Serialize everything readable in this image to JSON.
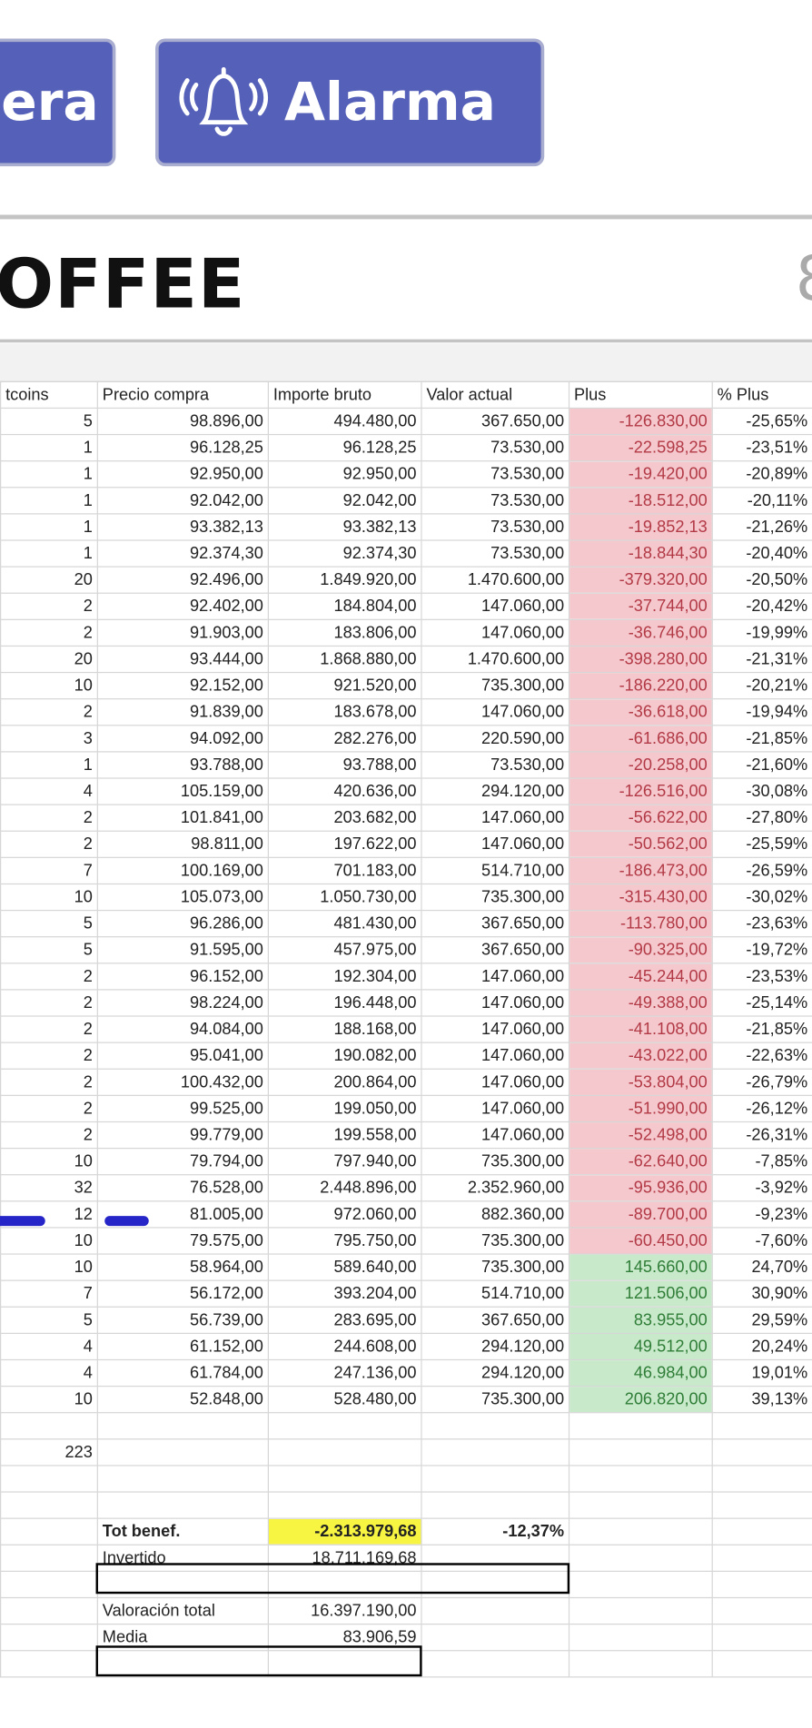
{
  "header": {
    "left_button": "era",
    "right_button": "Alarma",
    "title": "OFFEE",
    "title_right": "8"
  },
  "table": {
    "columns": [
      "tcoins",
      "Precio compra",
      "Importe bruto",
      "Valor actual",
      "Plus",
      "% Plus"
    ],
    "rows": [
      [
        "5",
        "98.896,00",
        "494.480,00",
        "367.650,00",
        "-126.830,00",
        "-25,65%"
      ],
      [
        "1",
        "96.128,25",
        "96.128,25",
        "73.530,00",
        "-22.598,25",
        "-23,51%"
      ],
      [
        "1",
        "92.950,00",
        "92.950,00",
        "73.530,00",
        "-19.420,00",
        "-20,89%"
      ],
      [
        "1",
        "92.042,00",
        "92.042,00",
        "73.530,00",
        "-18.512,00",
        "-20,11%"
      ],
      [
        "1",
        "93.382,13",
        "93.382,13",
        "73.530,00",
        "-19.852,13",
        "-21,26%"
      ],
      [
        "1",
        "92.374,30",
        "92.374,30",
        "73.530,00",
        "-18.844,30",
        "-20,40%"
      ],
      [
        "20",
        "92.496,00",
        "1.849.920,00",
        "1.470.600,00",
        "-379.320,00",
        "-20,50%"
      ],
      [
        "2",
        "92.402,00",
        "184.804,00",
        "147.060,00",
        "-37.744,00",
        "-20,42%"
      ],
      [
        "2",
        "91.903,00",
        "183.806,00",
        "147.060,00",
        "-36.746,00",
        "-19,99%"
      ],
      [
        "20",
        "93.444,00",
        "1.868.880,00",
        "1.470.600,00",
        "-398.280,00",
        "-21,31%"
      ],
      [
        "10",
        "92.152,00",
        "921.520,00",
        "735.300,00",
        "-186.220,00",
        "-20,21%"
      ],
      [
        "2",
        "91.839,00",
        "183.678,00",
        "147.060,00",
        "-36.618,00",
        "-19,94%"
      ],
      [
        "3",
        "94.092,00",
        "282.276,00",
        "220.590,00",
        "-61.686,00",
        "-21,85%"
      ],
      [
        "1",
        "93.788,00",
        "93.788,00",
        "73.530,00",
        "-20.258,00",
        "-21,60%"
      ],
      [
        "4",
        "105.159,00",
        "420.636,00",
        "294.120,00",
        "-126.516,00",
        "-30,08%"
      ],
      [
        "2",
        "101.841,00",
        "203.682,00",
        "147.060,00",
        "-56.622,00",
        "-27,80%"
      ],
      [
        "2",
        "98.811,00",
        "197.622,00",
        "147.060,00",
        "-50.562,00",
        "-25,59%"
      ],
      [
        "7",
        "100.169,00",
        "701.183,00",
        "514.710,00",
        "-186.473,00",
        "-26,59%"
      ],
      [
        "10",
        "105.073,00",
        "1.050.730,00",
        "735.300,00",
        "-315.430,00",
        "-30,02%"
      ],
      [
        "5",
        "96.286,00",
        "481.430,00",
        "367.650,00",
        "-113.780,00",
        "-23,63%"
      ],
      [
        "5",
        "91.595,00",
        "457.975,00",
        "367.650,00",
        "-90.325,00",
        "-19,72%"
      ],
      [
        "2",
        "96.152,00",
        "192.304,00",
        "147.060,00",
        "-45.244,00",
        "-23,53%"
      ],
      [
        "2",
        "98.224,00",
        "196.448,00",
        "147.060,00",
        "-49.388,00",
        "-25,14%"
      ],
      [
        "2",
        "94.084,00",
        "188.168,00",
        "147.060,00",
        "-41.108,00",
        "-21,85%"
      ],
      [
        "2",
        "95.041,00",
        "190.082,00",
        "147.060,00",
        "-43.022,00",
        "-22,63%"
      ],
      [
        "2",
        "100.432,00",
        "200.864,00",
        "147.060,00",
        "-53.804,00",
        "-26,79%"
      ],
      [
        "2",
        "99.525,00",
        "199.050,00",
        "147.060,00",
        "-51.990,00",
        "-26,12%"
      ],
      [
        "2",
        "99.779,00",
        "199.558,00",
        "147.060,00",
        "-52.498,00",
        "-26,31%"
      ],
      [
        "10",
        "79.794,00",
        "797.940,00",
        "735.300,00",
        "-62.640,00",
        "-7,85%"
      ],
      [
        "32",
        "76.528,00",
        "2.448.896,00",
        "2.352.960,00",
        "-95.936,00",
        "-3,92%"
      ],
      [
        "12",
        "81.005,00",
        "972.060,00",
        "882.360,00",
        "-89.700,00",
        "-9,23%"
      ],
      [
        "10",
        "79.575,00",
        "795.750,00",
        "735.300,00",
        "-60.450,00",
        "-7,60%"
      ],
      [
        "10",
        "58.964,00",
        "589.640,00",
        "735.300,00",
        "145.660,00",
        "24,70%"
      ],
      [
        "7",
        "56.172,00",
        "393.204,00",
        "514.710,00",
        "121.506,00",
        "30,90%"
      ],
      [
        "5",
        "56.739,00",
        "283.695,00",
        "367.650,00",
        "83.955,00",
        "29,59%"
      ],
      [
        "4",
        "61.152,00",
        "244.608,00",
        "294.120,00",
        "49.512,00",
        "20,24%"
      ],
      [
        "4",
        "61.784,00",
        "247.136,00",
        "294.120,00",
        "46.984,00",
        "19,01%"
      ],
      [
        "10",
        "52.848,00",
        "528.480,00",
        "735.300,00",
        "206.820,00",
        "39,13%"
      ]
    ]
  },
  "totals": {
    "bitcoins": "223"
  },
  "summary": {
    "tot_benef": {
      "label": "Tot benef.",
      "value": "-2.313.979,68",
      "percent": "-12,37%"
    },
    "invertido": {
      "label": "Invertido",
      "value": "18.711.169,68"
    },
    "valoracion": {
      "label": "Valoración total",
      "value": "16.397.190,00"
    },
    "media": {
      "label": "Media",
      "value": "83.906,59"
    }
  }
}
